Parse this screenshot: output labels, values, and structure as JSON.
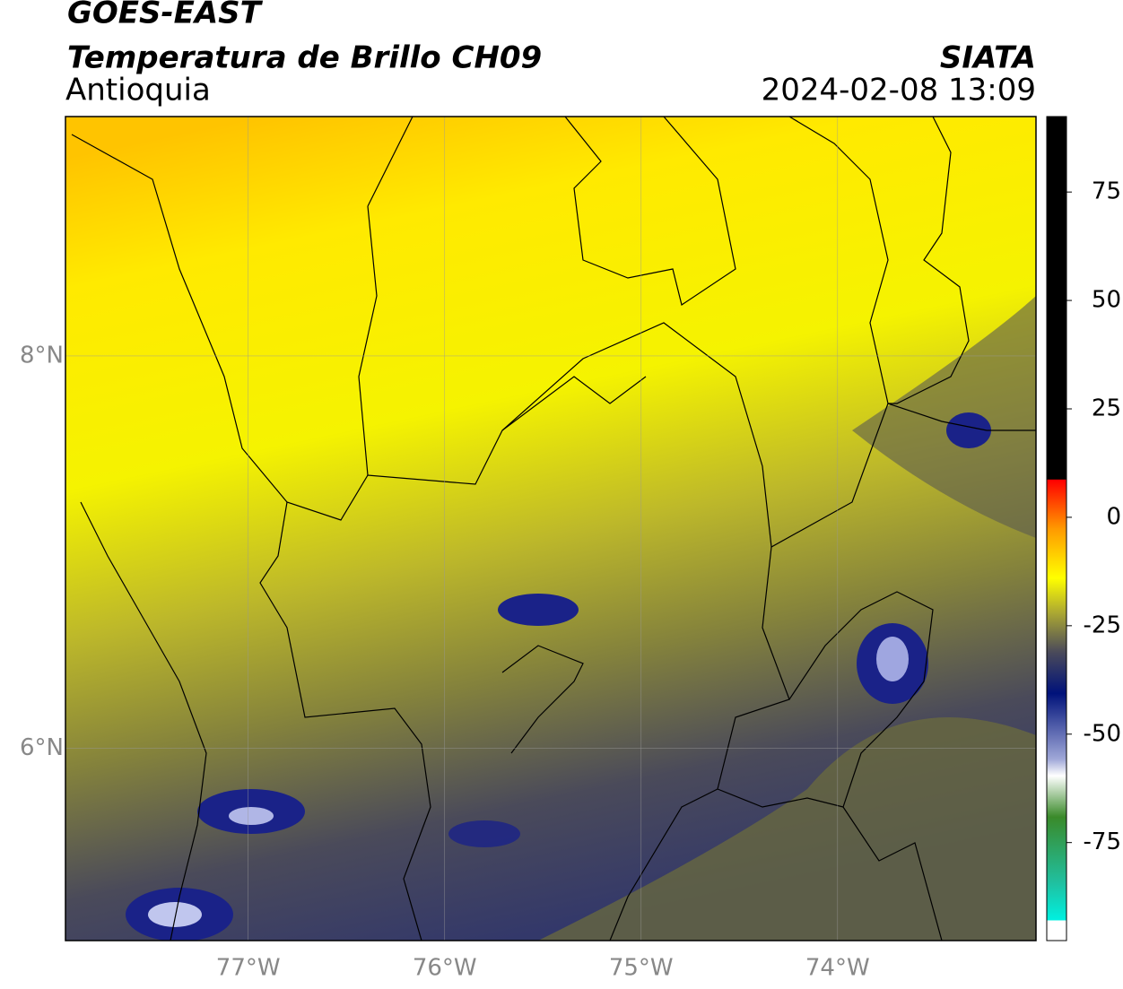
{
  "header": {
    "title": "GOES-EAST",
    "subtitle": "Temperatura de Brillo CH09",
    "region": "Antioquia",
    "source": "SIATA",
    "timestamp": "2024-02-08 13:09"
  },
  "map": {
    "xlim": [
      -77.93,
      -72.99
    ],
    "ylim": [
      5.02,
      9.22
    ],
    "xticks": [
      {
        "value": -77,
        "label": "77°W"
      },
      {
        "value": -76,
        "label": "76°W"
      },
      {
        "value": -75,
        "label": "75°W"
      },
      {
        "value": -74,
        "label": "74°W"
      }
    ],
    "yticks": [
      {
        "value": 8,
        "label": "8°N"
      },
      {
        "value": 6,
        "label": "6°N"
      }
    ]
  },
  "colorbar": {
    "ylim": [
      -97.6,
      92.4
    ],
    "yticks": [
      75,
      50,
      25,
      0,
      -25,
      -50,
      -75
    ]
  }
}
